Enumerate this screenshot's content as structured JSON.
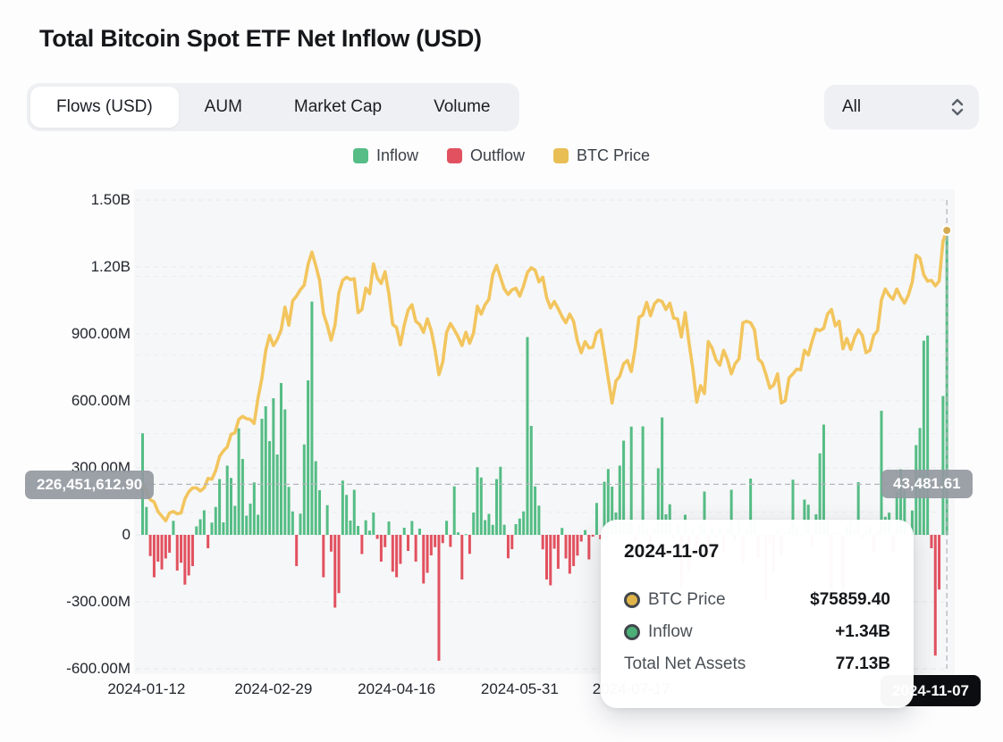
{
  "header": {
    "title": "Total Bitcoin Spot ETF Net Inflow (USD)"
  },
  "tabs": {
    "items": [
      {
        "label": "Flows (USD)",
        "active": true
      },
      {
        "label": "AUM",
        "active": false
      },
      {
        "label": "Market Cap",
        "active": false
      },
      {
        "label": "Volume",
        "active": false
      }
    ]
  },
  "range_select": {
    "value": "All"
  },
  "legend": [
    {
      "label": "Inflow",
      "color": "#55bd85"
    },
    {
      "label": "Outflow",
      "color": "#e2515f"
    },
    {
      "label": "BTC Price",
      "color": "#e9be55"
    }
  ],
  "crosshair": {
    "left_value": "226,451,612.90",
    "right_value": "43,481.61",
    "date_tag": "2024-11-07",
    "flow_value_m": 226.4516129
  },
  "tooltip": {
    "date": "2024-11-07",
    "rows": [
      {
        "marker_color": "#dfb44a",
        "label": "BTC Price",
        "value": "$75859.40"
      },
      {
        "marker_color": "#4caf78",
        "label": "Inflow",
        "value": "+1.34B"
      },
      {
        "label": "Total Net Assets",
        "value": "77.13B"
      }
    ]
  },
  "chart_data": {
    "type": "bar+line",
    "title": "Total Bitcoin Spot ETF Net Inflow (USD)",
    "series_names": [
      "Inflow",
      "Outflow",
      "BTC Price"
    ],
    "colors": {
      "inflow": "#55bd85",
      "outflow": "#e2515f",
      "price_line": "#f2c55e"
    },
    "grid": "dashed-horizontal",
    "legend_position": "top-center",
    "flow_axis": {
      "unit": "USD",
      "ylim": [
        -600,
        1500
      ],
      "ticks": [
        {
          "label": "1.50B",
          "value": 1500
        },
        {
          "label": "1.20B",
          "value": 1200
        },
        {
          "label": "900.00M",
          "value": 900
        },
        {
          "label": "600.00M",
          "value": 600
        },
        {
          "label": "300.00M",
          "value": 300
        },
        {
          "label": "0",
          "value": 0
        },
        {
          "label": "-300.00M",
          "value": -300
        },
        {
          "label": "-600.00M",
          "value": -600
        }
      ]
    },
    "price_axis": {
      "unit": "USD",
      "ylim": [
        20078,
        79723
      ],
      "gridlines": [
        40000,
        50000,
        60000,
        70000
      ]
    },
    "x_ticks": [
      {
        "index": 1,
        "label": "2024-01-12"
      },
      {
        "index": 34,
        "label": "2024-02-29"
      },
      {
        "index": 66,
        "label": "2024-04-16"
      },
      {
        "index": 98,
        "label": "2024-05-31"
      },
      {
        "index": 127,
        "label": "2024-07-17"
      }
    ],
    "highlight_index": 209,
    "highlight": {
      "date": "2024-11-07",
      "inflow_m": 1340,
      "btc_price": 75859.4,
      "total_net_assets_b": 77.13
    },
    "flows_m": [
      455,
      125,
      -95,
      -190,
      -120,
      -155,
      -106,
      -80,
      63,
      -160,
      -125,
      -223,
      -182,
      -140,
      38,
      70,
      110,
      -60,
      55,
      125,
      250,
      56,
      310,
      255,
      130,
      477,
      340,
      86,
      140,
      235,
      90,
      520,
      576,
      420,
      612,
      360,
      680,
      562,
      215,
      105,
      -140,
      95,
      405,
      692,
      1045,
      330,
      200,
      -190,
      133,
      -75,
      -326,
      -261,
      243,
      179,
      64,
      202,
      40,
      -86,
      65,
      19,
      100,
      -18,
      -120,
      -55,
      60,
      -165,
      -190,
      -130,
      32,
      -72,
      62,
      -120,
      28,
      -218,
      -170,
      -92,
      -55,
      -564,
      -37,
      63,
      -54,
      217,
      11,
      -200,
      3,
      -85,
      100,
      303,
      257,
      66,
      94,
      45,
      250,
      305,
      45,
      -105,
      -64,
      48,
      73,
      105,
      886,
      488,
      217,
      131,
      -65,
      -200,
      -226,
      -62,
      -152,
      31,
      -106,
      -174,
      -140,
      -93,
      -30,
      21,
      -110,
      -8,
      143,
      -20,
      238,
      295,
      216,
      100,
      310,
      422,
      53,
      485,
      -30,
      45,
      486,
      28,
      -78,
      31,
      298,
      526,
      92,
      137,
      -18,
      49,
      -237,
      90,
      -168,
      28,
      -80,
      45,
      194,
      -89,
      32,
      -13,
      36,
      -81,
      39,
      202,
      -28,
      65,
      -127,
      28,
      252,
      65,
      -105,
      2,
      -288,
      -37,
      -170,
      28,
      -91,
      12,
      28,
      247,
      40,
      -9,
      158,
      135,
      -52,
      92,
      365,
      494,
      61,
      -242,
      7,
      12,
      -243,
      39,
      61,
      26,
      236,
      -19,
      19,
      40,
      -81,
      19,
      556,
      81,
      99,
      -79,
      192,
      294,
      198,
      -4,
      109,
      402,
      479,
      870,
      893,
      -60,
      -541,
      -245,
      622,
      1340
    ],
    "btc_price": [
      43500,
      42600,
      41600,
      41300,
      40100,
      39500,
      38900,
      39900,
      40100,
      39800,
      39900,
      41700,
      42600,
      43100,
      43100,
      42700,
      43100,
      44300,
      44200,
      45300,
      47100,
      47800,
      48300,
      49900,
      50100,
      51800,
      52200,
      51900,
      51800,
      51300,
      54500,
      57000,
      60600,
      62500,
      61200,
      62000,
      63200,
      66100,
      63800,
      66900,
      67500,
      68300,
      68900,
      71500,
      73100,
      71400,
      69500,
      65300,
      63800,
      61900,
      63800,
      67900,
      69500,
      69900,
      69600,
      69700,
      65400,
      65800,
      68500,
      67800,
      71600,
      69800,
      69100,
      70600,
      67800,
      63900,
      63500,
      61300,
      63800,
      65700,
      66400,
      64300,
      63900,
      62900,
      64600,
      63100,
      60600,
      57500,
      59100,
      62900,
      64000,
      63200,
      62300,
      61200,
      62900,
      61500,
      62800,
      66200,
      65200,
      66400,
      67100,
      70200,
      71400,
      69900,
      68400,
      67700,
      68300,
      68500,
      67500,
      68800,
      70500,
      71100,
      70800,
      69300,
      69900,
      67300,
      66000,
      66800,
      65900,
      64900,
      64100,
      65200,
      64300,
      61800,
      60300,
      61700,
      60900,
      61000,
      62800,
      63200,
      60200,
      57000,
      53900,
      56700,
      57300,
      58900,
      59300,
      57900,
      60800,
      64800,
      65100,
      66700,
      65000,
      66500,
      67000,
      66800,
      65800,
      66600,
      64700,
      64600,
      62300,
      65400,
      61500,
      58200,
      54000,
      56100,
      55100,
      61700,
      60900,
      59400,
      58700,
      60600,
      59400,
      57600,
      58900,
      59500,
      64100,
      64300,
      64100,
      63200,
      59500,
      59000,
      57500,
      55800,
      56200,
      57600,
      53900,
      54200,
      57100,
      57600,
      58200,
      58100,
      60600,
      60000,
      61800,
      63300,
      63100,
      63400,
      65200,
      65800,
      63700,
      64300,
      60800,
      62100,
      60700,
      62200,
      63200,
      62500,
      60300,
      60600,
      62500,
      63100,
      67000,
      68400,
      67600,
      67100,
      68400,
      67400,
      66600,
      67600,
      69300,
      72700,
      72300,
      70200,
      69400,
      69500,
      68800,
      69400,
      74500,
      75859.4
    ]
  }
}
